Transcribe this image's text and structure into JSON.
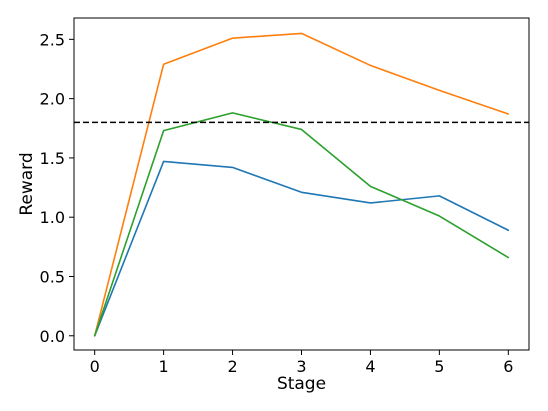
{
  "chart_data": {
    "type": "line",
    "title": "",
    "xlabel": "Stage",
    "ylabel": "Reward",
    "x": [
      0,
      1,
      2,
      3,
      4,
      5,
      6
    ],
    "xlim": [
      -0.3,
      6.3
    ],
    "ylim": [
      -0.12,
      2.68
    ],
    "xticks": [
      0,
      1,
      2,
      3,
      4,
      5,
      6
    ],
    "xtick_labels": [
      "0",
      "1",
      "2",
      "3",
      "4",
      "5",
      "6"
    ],
    "yticks": [
      0.0,
      0.5,
      1.0,
      1.5,
      2.0,
      2.5
    ],
    "ytick_labels": [
      "0.0",
      "0.5",
      "1.0",
      "1.5",
      "2.0",
      "2.5"
    ],
    "grid": false,
    "series": [
      {
        "color": "#1f77b4",
        "values": [
          0.0,
          1.47,
          1.42,
          1.21,
          1.12,
          1.18,
          0.89
        ]
      },
      {
        "color": "#ff7f0e",
        "values": [
          0.0,
          2.29,
          2.51,
          2.55,
          2.28,
          2.07,
          1.87
        ]
      },
      {
        "color": "#2ca02c",
        "values": [
          0.0,
          1.73,
          1.88,
          1.74,
          1.26,
          1.01,
          0.66
        ]
      }
    ],
    "reference_line": {
      "y": 1.8,
      "style": "dashed",
      "color": "#000000"
    }
  }
}
